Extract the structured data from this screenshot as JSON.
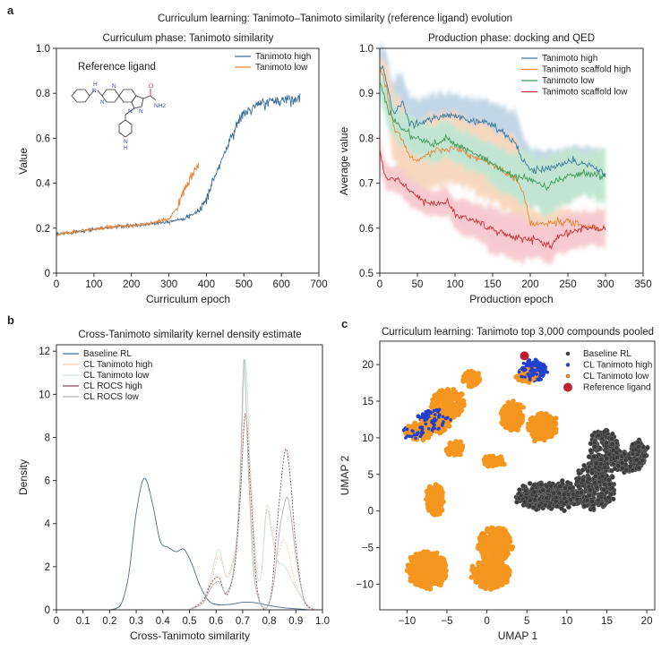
{
  "figure": {
    "main_title": "Curriculum learning: Tanimoto–Tanimoto similarity (reference ligand) evolution",
    "panel_labels": [
      "a",
      "b",
      "c"
    ]
  },
  "chart_data": [
    {
      "id": "a_left",
      "type": "line",
      "title": "Curriculum phase: Tanimoto similarity",
      "xlabel": "Curriculum epoch",
      "ylabel": "Value",
      "xlim": [
        0,
        700
      ],
      "ylim": [
        0,
        1.0
      ],
      "xticks": [
        0,
        100,
        200,
        300,
        400,
        500,
        600,
        700
      ],
      "yticks": [
        0,
        0.2,
        0.4,
        0.6,
        0.8,
        1.0
      ],
      "ytick_labels": [
        "0",
        "0.2",
        "0.4",
        "0.6",
        "0.8",
        "1.0"
      ],
      "legend_position": "top-right",
      "annotation": "Reference ligand",
      "molecule_atoms": [
        "H",
        "N",
        "N",
        "N",
        "O",
        "NH2",
        "N",
        "N",
        "N",
        "H"
      ],
      "series": [
        {
          "name": "Tanimoto high",
          "color": "#3c6e9a",
          "x": [
            0,
            50,
            100,
            150,
            200,
            250,
            300,
            330,
            360,
            380,
            400,
            420,
            440,
            460,
            480,
            500,
            520,
            540,
            560,
            580,
            600,
            620,
            650
          ],
          "y": [
            0.17,
            0.185,
            0.195,
            0.205,
            0.21,
            0.22,
            0.23,
            0.24,
            0.255,
            0.28,
            0.33,
            0.42,
            0.5,
            0.58,
            0.66,
            0.71,
            0.73,
            0.75,
            0.76,
            0.765,
            0.77,
            0.775,
            0.78
          ]
        },
        {
          "name": "Tanimoto low",
          "color": "#e8863a",
          "x": [
            0,
            50,
            100,
            150,
            200,
            250,
            300,
            320,
            340,
            360,
            380
          ],
          "y": [
            0.17,
            0.185,
            0.195,
            0.205,
            0.21,
            0.22,
            0.24,
            0.29,
            0.36,
            0.43,
            0.49
          ]
        }
      ]
    },
    {
      "id": "a_right",
      "type": "line",
      "title": "Production phase: docking and QED",
      "xlabel": "Production epoch",
      "ylabel": "Average value",
      "xlim": [
        0,
        350
      ],
      "ylim": [
        0.5,
        1.0
      ],
      "xticks": [
        0,
        50,
        100,
        150,
        200,
        250,
        300,
        350
      ],
      "yticks": [
        0.5,
        0.6,
        0.7,
        0.8,
        0.9,
        1.0
      ],
      "ytick_labels": [
        "0.5",
        "0.6",
        "0.7",
        "0.8",
        "0.9",
        "1.0"
      ],
      "legend_position": "top-right",
      "series": [
        {
          "name": "Tanimoto high",
          "color": "#3c7a9e",
          "band_color": "#8fb6d3",
          "x": [
            0,
            5,
            10,
            15,
            20,
            30,
            40,
            50,
            70,
            90,
            100,
            120,
            140,
            160,
            180,
            190,
            200,
            220,
            250,
            280,
            300
          ],
          "y": [
            0.96,
            0.95,
            0.92,
            0.87,
            0.86,
            0.88,
            0.83,
            0.83,
            0.845,
            0.85,
            0.85,
            0.84,
            0.835,
            0.82,
            0.79,
            0.75,
            0.73,
            0.73,
            0.75,
            0.74,
            0.72
          ],
          "band": [
            0.05,
            0.05,
            0.06,
            0.07,
            0.07,
            0.07,
            0.06,
            0.06,
            0.05,
            0.05,
            0.05,
            0.05,
            0.05,
            0.05,
            0.07,
            0.06,
            0.05,
            0.04,
            0.03,
            0.04,
            0.05
          ]
        },
        {
          "name": "Tanimoto scaffold high",
          "color": "#e8893a",
          "band_color": "#f1b98a",
          "x": [
            0,
            5,
            10,
            15,
            20,
            30,
            40,
            50,
            70,
            90,
            100,
            120,
            140,
            160,
            180,
            190,
            200,
            220,
            250,
            280,
            300
          ],
          "y": [
            0.95,
            0.94,
            0.9,
            0.85,
            0.82,
            0.8,
            0.76,
            0.75,
            0.77,
            0.775,
            0.78,
            0.76,
            0.75,
            0.73,
            0.71,
            0.68,
            0.61,
            0.61,
            0.615,
            0.6,
            0.6
          ],
          "band": [
            0.03,
            0.04,
            0.06,
            0.07,
            0.08,
            0.08,
            0.08,
            0.08,
            0.08,
            0.08,
            0.08,
            0.08,
            0.08,
            0.08,
            0.09,
            0.08,
            0.03,
            0.03,
            0.03,
            0.03,
            0.04
          ]
        },
        {
          "name": "Tanimoto low",
          "color": "#3f9a58",
          "band_color": "#8fd1ab",
          "x": [
            0,
            5,
            10,
            15,
            20,
            30,
            40,
            50,
            70,
            90,
            100,
            120,
            140,
            160,
            180,
            200,
            220,
            240,
            260,
            280,
            300
          ],
          "y": [
            0.93,
            0.9,
            0.87,
            0.85,
            0.84,
            0.82,
            0.81,
            0.8,
            0.785,
            0.8,
            0.785,
            0.77,
            0.755,
            0.73,
            0.715,
            0.71,
            0.69,
            0.71,
            0.72,
            0.72,
            0.715
          ],
          "band": [
            0.04,
            0.04,
            0.04,
            0.04,
            0.04,
            0.04,
            0.04,
            0.04,
            0.04,
            0.04,
            0.04,
            0.04,
            0.04,
            0.05,
            0.05,
            0.06,
            0.06,
            0.06,
            0.05,
            0.05,
            0.06
          ]
        },
        {
          "name": "Tanimoto scaffold low",
          "color": "#c9303e",
          "band_color": "#f0a0a8",
          "x": [
            0,
            5,
            10,
            20,
            30,
            40,
            50,
            60,
            70,
            80,
            90,
            100,
            110,
            130,
            150,
            170,
            190,
            210,
            225,
            240,
            260,
            280,
            300
          ],
          "y": [
            0.78,
            0.73,
            0.71,
            0.71,
            0.7,
            0.68,
            0.67,
            0.66,
            0.655,
            0.655,
            0.66,
            0.63,
            0.625,
            0.615,
            0.595,
            0.585,
            0.575,
            0.575,
            0.56,
            0.585,
            0.595,
            0.6,
            0.6
          ],
          "band": [
            0.03,
            0.03,
            0.03,
            0.03,
            0.03,
            0.03,
            0.03,
            0.03,
            0.03,
            0.03,
            0.03,
            0.03,
            0.04,
            0.04,
            0.05,
            0.05,
            0.05,
            0.04,
            0.04,
            0.04,
            0.04,
            0.04,
            0.04
          ]
        }
      ]
    },
    {
      "id": "b",
      "type": "line",
      "title": "Cross-Tanimoto similarity kernel density estimate",
      "xlabel": "Cross-Tanimoto similarity",
      "ylabel": "Density",
      "xlim": [
        0,
        1.0
      ],
      "ylim": [
        0,
        12.3
      ],
      "xticks": [
        0,
        0.1,
        0.2,
        0.3,
        0.4,
        0.5,
        0.6,
        0.7,
        0.8,
        0.9,
        1.0
      ],
      "xtick_labels": [
        "0",
        "0.1",
        "0.2",
        "0.3",
        "0.4",
        "0.5",
        "0.6",
        "0.7",
        "0.8",
        "0.9",
        "1.0"
      ],
      "yticks": [
        0,
        2,
        4,
        6,
        8,
        10,
        12
      ],
      "legend_position": "top-left",
      "series": [
        {
          "name": "Baseline RL",
          "color": "#4a6f8f",
          "x": [
            0.2,
            0.24,
            0.27,
            0.3,
            0.33,
            0.36,
            0.39,
            0.42,
            0.45,
            0.48,
            0.51,
            0.54,
            0.57,
            0.6,
            0.65,
            0.7,
            0.73,
            0.76,
            0.8,
            0.85,
            0.9,
            0.95
          ],
          "y": [
            0,
            0.2,
            1.5,
            4.5,
            6.1,
            5.0,
            3.2,
            2.9,
            2.7,
            2.8,
            2.1,
            1.1,
            0.45,
            0.25,
            0.25,
            0.35,
            0.35,
            0.3,
            0.2,
            0.1,
            0.05,
            0
          ]
        },
        {
          "name": "CL Tanimoto high",
          "color": "#f0c9b3",
          "x": [
            0.5,
            0.55,
            0.58,
            0.61,
            0.64,
            0.67,
            0.69,
            0.71,
            0.73,
            0.75,
            0.77,
            0.79,
            0.81,
            0.83,
            0.85,
            0.87,
            0.9,
            0.95
          ],
          "y": [
            0,
            0.4,
            1.2,
            2.5,
            1.6,
            2.7,
            5.0,
            9.0,
            6.5,
            2.5,
            1.8,
            4.8,
            3.8,
            2.5,
            3.2,
            2.8,
            1.2,
            0
          ]
        },
        {
          "name": "CL Tanimoto low",
          "color": "#cfe3d6",
          "x": [
            0.5,
            0.55,
            0.58,
            0.61,
            0.64,
            0.67,
            0.69,
            0.71,
            0.73,
            0.75,
            0.77,
            0.79,
            0.81,
            0.83,
            0.86,
            0.9,
            0.95
          ],
          "y": [
            0,
            0.5,
            1.5,
            2.8,
            1.5,
            2.6,
            5.5,
            11.6,
            6.0,
            2.0,
            1.6,
            4.6,
            3.5,
            2.3,
            2.0,
            1.0,
            0
          ]
        },
        {
          "name": "CL ROCS high",
          "color": "#8a4a58",
          "x": [
            0.5,
            0.55,
            0.58,
            0.61,
            0.64,
            0.67,
            0.69,
            0.71,
            0.73,
            0.75,
            0.77,
            0.79,
            0.81,
            0.83,
            0.86,
            0.88,
            0.9,
            0.93,
            0.97
          ],
          "y": [
            0,
            0.4,
            1.2,
            1.5,
            0.7,
            2.0,
            5.0,
            9.1,
            5.5,
            1.5,
            0.2,
            0.1,
            1.0,
            4.0,
            7.4,
            6.0,
            3.0,
            0.5,
            0
          ]
        },
        {
          "name": "CL ROCS low",
          "color": "#b4b4b4",
          "x": [
            0.5,
            0.55,
            0.58,
            0.61,
            0.64,
            0.67,
            0.69,
            0.705,
            0.72,
            0.74,
            0.76,
            0.78,
            0.8,
            0.82,
            0.84,
            0.865,
            0.88,
            0.9,
            0.93,
            0.97
          ],
          "y": [
            0,
            0.3,
            1.0,
            1.3,
            0.8,
            2.2,
            6.0,
            11.6,
            7.0,
            2.0,
            0.5,
            0.1,
            0.3,
            1.5,
            3.8,
            5.2,
            4.5,
            2.5,
            0.5,
            0
          ]
        }
      ]
    },
    {
      "id": "c",
      "type": "scatter",
      "title": "Curriculum learning: Tanimoto top 3,000 compounds pooled",
      "xlabel": "UMAP 1",
      "ylabel": "UMAP 2",
      "xlim": [
        -13.4,
        21
      ],
      "ylim": [
        -13.5,
        23.2
      ],
      "xticks": [
        -10,
        -5,
        0,
        5,
        10,
        15,
        20
      ],
      "xtick_labels": [
        "−10",
        "−5",
        "0",
        "5",
        "10",
        "15",
        "20"
      ],
      "yticks": [
        -10,
        -5,
        0,
        5,
        10,
        15,
        20
      ],
      "ytick_labels": [
        "−10",
        "−5",
        "0",
        "5",
        "10",
        "15",
        "20"
      ],
      "legend_position": "top-right",
      "series": [
        {
          "name": "Baseline RL",
          "color": "#3a3a3a",
          "clusters": [
            {
              "cx": 6.5,
              "cy": 2.0,
              "rx": 2.8,
              "ry": 1.8,
              "n": 260
            },
            {
              "cx": 9.5,
              "cy": 2.0,
              "rx": 2.2,
              "ry": 1.8,
              "n": 180
            },
            {
              "cx": 13.5,
              "cy": 3.5,
              "rx": 2.4,
              "ry": 3.2,
              "n": 260
            },
            {
              "cx": 14.5,
              "cy": 8.5,
              "rx": 1.8,
              "ry": 2.5,
              "n": 160
            },
            {
              "cx": 17.5,
              "cy": 6.8,
              "rx": 2.0,
              "ry": 1.5,
              "n": 130
            },
            {
              "cx": 19.0,
              "cy": 8.0,
              "rx": 0.9,
              "ry": 1.5,
              "n": 70
            }
          ]
        },
        {
          "name": "CL Tanimoto high",
          "color": "#2140d0",
          "clusters": [
            {
              "cx": 5.8,
              "cy": 19.2,
              "rx": 1.6,
              "ry": 1.2,
              "n": 120
            },
            {
              "cx": -6.7,
              "cy": 12.3,
              "rx": 1.8,
              "ry": 1.4,
              "n": 110
            },
            {
              "cx": -9.0,
              "cy": 10.8,
              "rx": 1.2,
              "ry": 0.8,
              "n": 50
            }
          ]
        },
        {
          "name": "CL Tanimoto low",
          "color": "#f5961f",
          "clusters": [
            {
              "cx": -7.5,
              "cy": -8.0,
              "rx": 2.4,
              "ry": 2.4,
              "n": 420
            },
            {
              "cx": 1.0,
              "cy": -4.5,
              "rx": 2.0,
              "ry": 2.4,
              "n": 320
            },
            {
              "cx": 0.5,
              "cy": -8.5,
              "rx": 2.4,
              "ry": 2.0,
              "n": 300
            },
            {
              "cx": -6.5,
              "cy": 1.5,
              "rx": 1.0,
              "ry": 2.2,
              "n": 140
            },
            {
              "cx": -4.8,
              "cy": 14.7,
              "rx": 2.0,
              "ry": 2.0,
              "n": 230
            },
            {
              "cx": -8.5,
              "cy": 11.0,
              "rx": 1.6,
              "ry": 1.2,
              "n": 100
            },
            {
              "cx": -6.0,
              "cy": 12.0,
              "rx": 1.2,
              "ry": 1.2,
              "n": 80
            },
            {
              "cx": -2.0,
              "cy": 18.0,
              "rx": 1.0,
              "ry": 1.1,
              "n": 90
            },
            {
              "cx": -4.0,
              "cy": 8.5,
              "rx": 1.1,
              "ry": 0.9,
              "n": 70
            },
            {
              "cx": 3.2,
              "cy": 13.0,
              "rx": 1.4,
              "ry": 2.0,
              "n": 180
            },
            {
              "cx": 7.0,
              "cy": 11.5,
              "rx": 1.8,
              "ry": 1.8,
              "n": 200
            },
            {
              "cx": 0.8,
              "cy": 6.8,
              "rx": 1.2,
              "ry": 0.7,
              "n": 70
            },
            {
              "cx": 5.0,
              "cy": 18.5,
              "rx": 1.2,
              "ry": 0.8,
              "n": 60
            }
          ]
        },
        {
          "name": "Reference ligand",
          "color": "#c0202e",
          "points": [
            [
              4.7,
              21.2
            ]
          ]
        }
      ]
    }
  ]
}
